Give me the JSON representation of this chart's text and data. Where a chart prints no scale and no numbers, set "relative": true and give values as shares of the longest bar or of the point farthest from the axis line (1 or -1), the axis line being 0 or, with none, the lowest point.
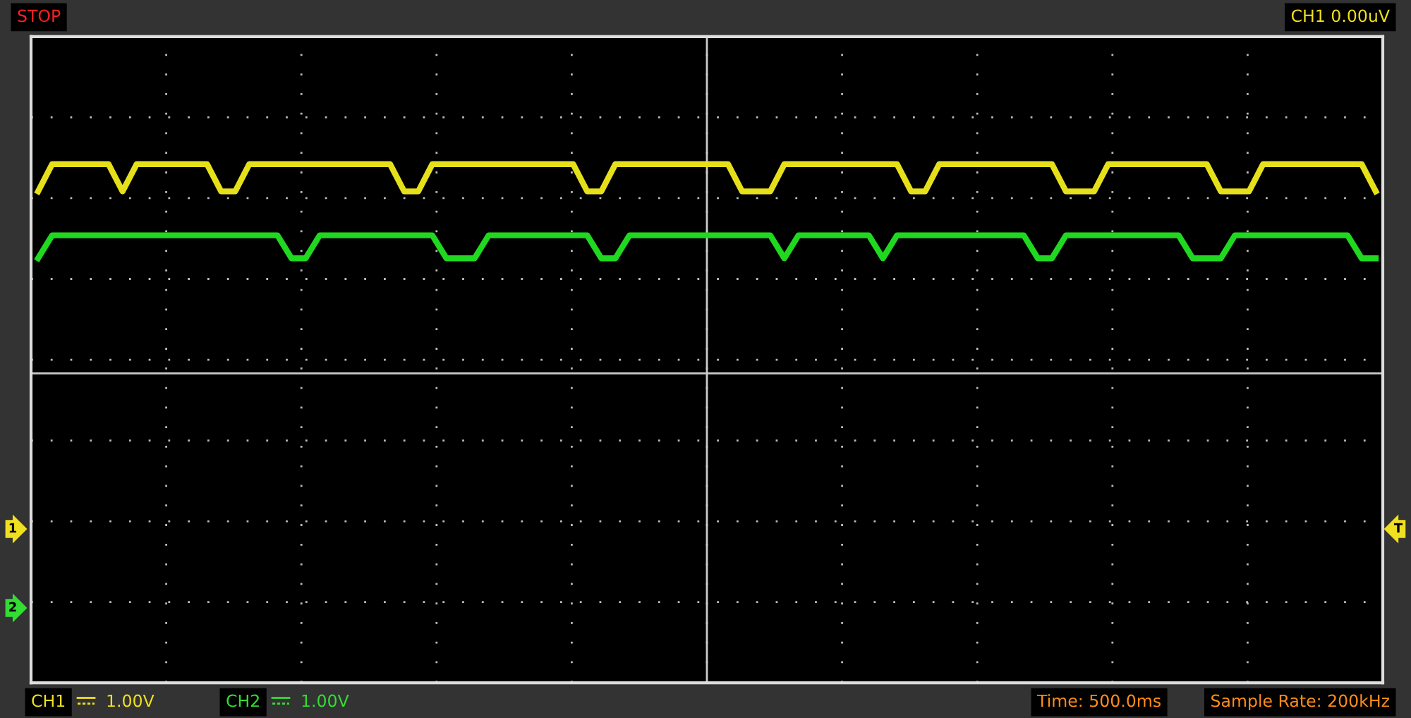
{
  "chart_data": {
    "type": "line",
    "relative": true,
    "grid": true,
    "marker": "none",
    "line_style": "solid",
    "categories": [
      null,
      null,
      null,
      null,
      null,
      null,
      null,
      null,
      null,
      null,
      null,
      null,
      null,
      null,
      null,
      null,
      null,
      null,
      null,
      null,
      null,
      null,
      null,
      null,
      null,
      null,
      null,
      null,
      null,
      null,
      null,
      null,
      null,
      null,
      null,
      null,
      null,
      null,
      null,
      null,
      null,
      null,
      null,
      null,
      null,
      null,
      null,
      null,
      null,
      null,
      null,
      null,
      null,
      null,
      null,
      null,
      null,
      null,
      null,
      null,
      null,
      null,
      null,
      null,
      null,
      null,
      null,
      null,
      null,
      null,
      null,
      null,
      null,
      null,
      null,
      null,
      null,
      null,
      null,
      null,
      null,
      null,
      null,
      null,
      null,
      null,
      null,
      null,
      null,
      null,
      null,
      null,
      null,
      null,
      null,
      null
    ],
    "series": [
      {
        "color": "#e6e01a",
        "values": [
          0.87,
          1,
          1,
          1,
          1,
          1,
          0.87,
          1,
          1,
          1,
          1,
          1,
          1,
          0.87,
          0.87,
          1,
          1,
          1,
          1,
          1,
          1,
          1,
          1,
          1,
          1,
          1,
          0.87,
          0.87,
          1,
          1,
          1,
          1,
          1,
          1,
          1,
          1,
          1,
          1,
          1,
          0.87,
          0.87,
          1,
          1,
          1,
          1,
          1,
          1,
          1,
          1,
          1,
          0.87,
          0.87,
          0.87,
          1,
          1,
          1,
          1,
          1,
          1,
          1,
          1,
          1,
          0.87,
          0.87,
          1,
          1,
          1,
          1,
          1,
          1,
          1,
          1,
          1,
          0.87,
          0.87,
          0.87,
          1,
          1,
          1,
          1,
          1,
          1,
          1,
          1,
          0.87,
          0.87,
          0.87,
          1,
          1,
          1,
          1,
          1,
          1,
          1,
          1,
          0.87
        ]
      },
      {
        "color": "#1fd81f",
        "values": [
          0.55,
          0.66,
          0.66,
          0.66,
          0.66,
          0.66,
          0.66,
          0.66,
          0.66,
          0.66,
          0.66,
          0.66,
          0.66,
          0.66,
          0.66,
          0.66,
          0.66,
          0.66,
          0.55,
          0.55,
          0.66,
          0.66,
          0.66,
          0.66,
          0.66,
          0.66,
          0.66,
          0.66,
          0.66,
          0.55,
          0.55,
          0.55,
          0.66,
          0.66,
          0.66,
          0.66,
          0.66,
          0.66,
          0.66,
          0.66,
          0.55,
          0.55,
          0.66,
          0.66,
          0.66,
          0.66,
          0.66,
          0.66,
          0.66,
          0.66,
          0.66,
          0.66,
          0.66,
          0.55,
          0.66,
          0.66,
          0.66,
          0.66,
          0.66,
          0.66,
          0.55,
          0.66,
          0.66,
          0.66,
          0.66,
          0.66,
          0.66,
          0.66,
          0.66,
          0.66,
          0.66,
          0.55,
          0.55,
          0.66,
          0.66,
          0.66,
          0.66,
          0.66,
          0.66,
          0.66,
          0.66,
          0.66,
          0.55,
          0.55,
          0.55,
          0.66,
          0.66,
          0.66,
          0.66,
          0.66,
          0.66,
          0.66,
          0.66,
          0.66,
          0.55,
          0.55
        ]
      }
    ],
    "annotations": [
      "STOP",
      "CH1 0.00uV",
      "CH1 1.00V",
      "CH2 1.00V",
      "Time: 500.0ms",
      "Sample Rate: 200kHz",
      "1",
      "2",
      "T"
    ]
  }
}
